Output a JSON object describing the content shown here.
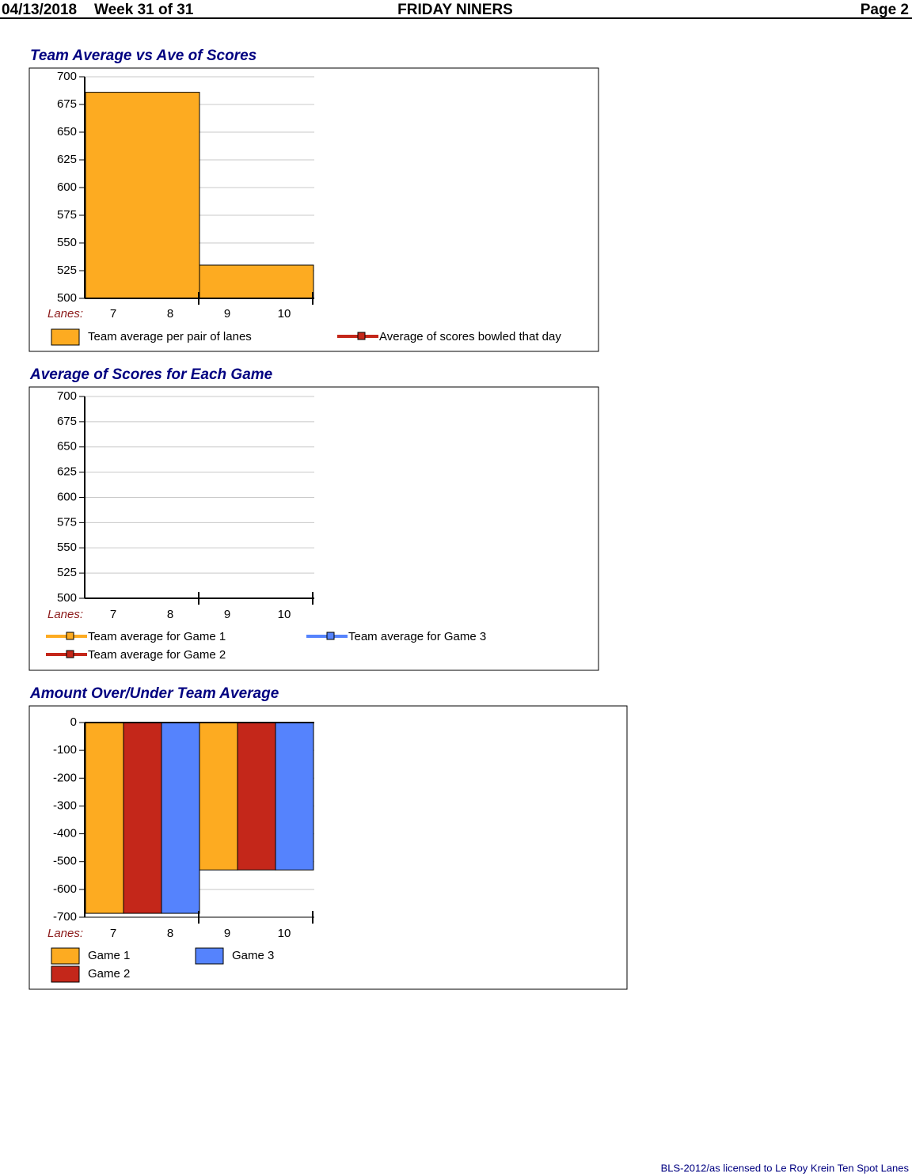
{
  "header": {
    "date": "04/13/2018",
    "week": "Week 31 of 31",
    "title": "FRIDAY NINERS",
    "page": "Page 2"
  },
  "chart_data": [
    {
      "type": "bar",
      "title": "Team Average vs Ave of Scores",
      "x_label": "Lanes:",
      "pairs": [
        [
          "7",
          "8"
        ],
        [
          "9",
          "10"
        ]
      ],
      "ylim": [
        500,
        700
      ],
      "yticks": [
        500,
        525,
        550,
        575,
        600,
        625,
        650,
        675,
        700
      ],
      "grid": true,
      "series": [
        {
          "name": "Team average per pair of lanes",
          "type": "bar",
          "color": "#fdab21",
          "values": [
            686,
            530
          ]
        },
        {
          "name": "Average of scores bowled that day",
          "type": "line",
          "color": "#c4271a"
        }
      ]
    },
    {
      "type": "line",
      "title": "Average of Scores for Each Game",
      "x_label": "Lanes:",
      "pairs": [
        [
          "7",
          "8"
        ],
        [
          "9",
          "10"
        ]
      ],
      "ylim": [
        500,
        700
      ],
      "yticks": [
        500,
        525,
        550,
        575,
        600,
        625,
        650,
        675,
        700
      ],
      "grid": true,
      "series": [
        {
          "name": "Team average for Game 1",
          "type": "line",
          "color": "#fdab21"
        },
        {
          "name": "Team average for Game 2",
          "type": "line",
          "color": "#c4271a"
        },
        {
          "name": "Team average for Game 3",
          "type": "line",
          "color": "#5583fd"
        }
      ]
    },
    {
      "type": "bar",
      "title": "Amount Over/Under Team Average",
      "x_label": "Lanes:",
      "pairs": [
        [
          "7",
          "8"
        ],
        [
          "9",
          "10"
        ]
      ],
      "ylim": [
        -700,
        0
      ],
      "yticks": [
        0,
        -100,
        -200,
        -300,
        -400,
        -500,
        -600,
        -700
      ],
      "grid": true,
      "series": [
        {
          "name": "Game 1",
          "type": "bar",
          "color": "#fdab21",
          "values": [
            -686,
            -530
          ]
        },
        {
          "name": "Game 2",
          "type": "bar",
          "color": "#c4271a",
          "values": [
            -686,
            -530
          ]
        },
        {
          "name": "Game 3",
          "type": "bar",
          "color": "#5583fd",
          "values": [
            -686,
            -530
          ]
        }
      ]
    }
  ],
  "footer": "BLS-2012/as licensed to Le Roy Krein  Ten Spot Lanes"
}
